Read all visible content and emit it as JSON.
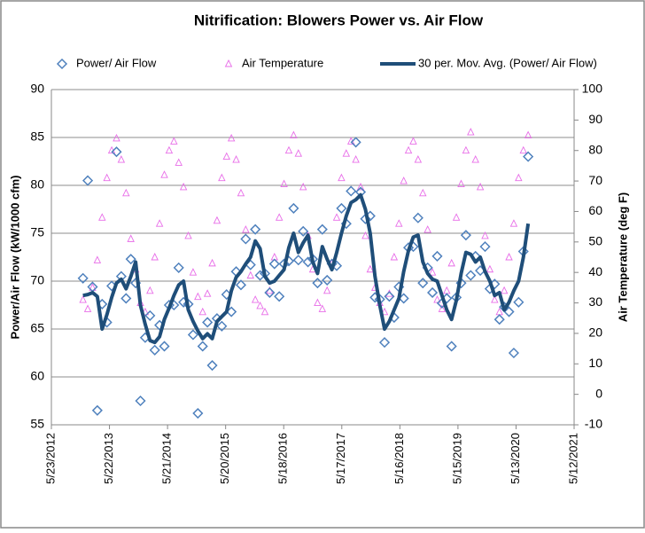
{
  "chart_data": {
    "type": "scatter",
    "title": "Nitrification:  Blowers Power vs. Air Flow",
    "ylabel": "Power/Air Flow (kW/1000 cfm)",
    "y2label": "Air Temperature (deg F)",
    "x": [
      41250,
      41280,
      41310,
      41340,
      41370,
      41400,
      41430,
      41460,
      41490,
      41520,
      41550,
      41580,
      41610,
      41640,
      41670,
      41700,
      41730,
      41760,
      41790,
      41820,
      41850,
      41880,
      41910,
      41940,
      41970,
      42000,
      42030,
      42060,
      42090,
      42120,
      42150,
      42180,
      42210,
      42240,
      42270,
      42300,
      42330,
      42360,
      42390,
      42420,
      42450,
      42480,
      42510,
      42540,
      42570,
      42600,
      42630,
      42660,
      42690,
      42720,
      42750,
      42780,
      42810,
      42840,
      42870,
      42900,
      42930,
      42960,
      42990,
      43020,
      43050,
      43080,
      43110,
      43140,
      43170,
      43200,
      43230,
      43260,
      43290,
      43320,
      43350,
      43380,
      43410,
      43440,
      43470,
      43500,
      43530,
      43560,
      43590,
      43620,
      43650,
      43680,
      43710,
      43740,
      43770,
      43800,
      43830,
      43860,
      43890,
      43920,
      43950,
      43980,
      44010,
      44040
    ],
    "series": [
      {
        "name": "Power/ Air Flow",
        "color": "#4f81bd",
        "marker": "diamond",
        "values": [
          70.3,
          80.5,
          69.4,
          56.5,
          67.6,
          65.7,
          69.5,
          83.5,
          70.5,
          68.2,
          72.3,
          69.8,
          57.5,
          64.1,
          66.4,
          62.8,
          65.4,
          63.2,
          67.5,
          67.5,
          71.4,
          67.8,
          67.6,
          64.4,
          56.2,
          63.2,
          65.7,
          61.2,
          66.1,
          65.3,
          68.6,
          66.8,
          71.0,
          69.6,
          74.4,
          71.7,
          75.4,
          70.6,
          70.8,
          68.8,
          71.8,
          68.4,
          71.8,
          72.1,
          77.6,
          72.2,
          75.2,
          72.0,
          72.3,
          69.8,
          75.4,
          70.1,
          71.8,
          71.6,
          77.6,
          76.0,
          79.4,
          84.5,
          79.3,
          76.5,
          76.8,
          68.3,
          68.1,
          63.6,
          68.4,
          66.2,
          69.4,
          68.2,
          73.5,
          73.6,
          76.6,
          69.8,
          71.4,
          68.8,
          72.6,
          67.7,
          68.2,
          63.2,
          68.3,
          69.8,
          74.8,
          70.6,
          72.6,
          71.1,
          73.6,
          69.2,
          69.7,
          66.0,
          67.3,
          66.8,
          62.5,
          67.8,
          73.1,
          83.0
        ]
      },
      {
        "name": "Air Temperature",
        "color": "#e86de8",
        "marker": "triangle",
        "axis": "y2",
        "values": [
          31,
          28,
          35,
          44,
          58,
          71,
          80,
          84,
          77,
          66,
          51,
          41,
          30,
          27,
          34,
          45,
          56,
          72,
          80,
          83,
          76,
          68,
          52,
          40,
          32,
          27,
          33,
          43,
          57,
          71,
          78,
          84,
          77,
          66,
          54,
          39,
          31,
          29,
          27,
          34,
          45,
          58,
          69,
          80,
          85,
          79,
          68,
          52,
          41,
          30,
          28,
          34,
          43,
          58,
          71,
          79,
          83,
          77,
          68,
          52,
          41,
          35,
          30,
          27,
          33,
          45,
          56,
          70,
          80,
          83,
          77,
          66,
          54,
          40,
          31,
          28,
          34,
          43,
          58,
          69,
          80,
          86,
          77,
          68,
          52,
          41,
          31,
          27,
          34,
          45,
          56,
          71,
          80,
          85
        ]
      },
      {
        "name": "30 per. Mov. Avg. (Power/ Air Flow)",
        "color": "#1f4e79",
        "marker": "line",
        "values": [
          68.5,
          68.6,
          68.8,
          68.4,
          65.0,
          66.5,
          68.3,
          69.8,
          70.2,
          69.2,
          70.5,
          72.0,
          67.5,
          65.5,
          63.8,
          63.6,
          64.2,
          66.0,
          67.2,
          68.5,
          69.6,
          70.0,
          67.0,
          65.8,
          64.8,
          64.0,
          64.5,
          64.0,
          65.8,
          66.3,
          66.8,
          69.0,
          70.4,
          71.0,
          71.8,
          72.5,
          74.2,
          73.4,
          70.5,
          69.8,
          70.0,
          70.6,
          71.2,
          73.5,
          75.0,
          73.0,
          74.0,
          74.8,
          72.0,
          70.8,
          73.6,
          72.3,
          71.2,
          73.0,
          75.0,
          76.8,
          78.2,
          78.5,
          79.0,
          77.5,
          75.0,
          70.5,
          67.5,
          65.0,
          65.8,
          67.0,
          68.2,
          71.0,
          73.2,
          74.6,
          74.8,
          72.0,
          70.8,
          70.2,
          70.0,
          68.5,
          67.0,
          66.0,
          68.0,
          70.8,
          73.0,
          72.8,
          72.0,
          72.5,
          71.0,
          70.0,
          68.5,
          68.8,
          67.0,
          67.8,
          69.0,
          70.0,
          72.5,
          76.0
        ]
      }
    ],
    "xlim": [
      41052,
      44328
    ],
    "xticks": [
      {
        "value": 41052,
        "label": "5/23/2012"
      },
      {
        "value": 41416,
        "label": "5/22/2013"
      },
      {
        "value": 41780,
        "label": "5/21/2014"
      },
      {
        "value": 42144,
        "label": "5/20/2015"
      },
      {
        "value": 42508,
        "label": "5/18/2016"
      },
      {
        "value": 42872,
        "label": "5/17/2017"
      },
      {
        "value": 43236,
        "label": "5/16/2018"
      },
      {
        "value": 43600,
        "label": "5/15/2019"
      },
      {
        "value": 43964,
        "label": "5/13/2020"
      },
      {
        "value": 44328,
        "label": "5/12/2021"
      }
    ],
    "ylim": [
      55,
      90
    ],
    "yticks": [
      55,
      60,
      65,
      70,
      75,
      80,
      85,
      90
    ],
    "y2lim": [
      -10,
      100
    ],
    "y2ticks": [
      -10,
      0,
      10,
      20,
      30,
      40,
      50,
      60,
      70,
      80,
      90,
      100
    ],
    "grid": true,
    "legend": "top"
  }
}
